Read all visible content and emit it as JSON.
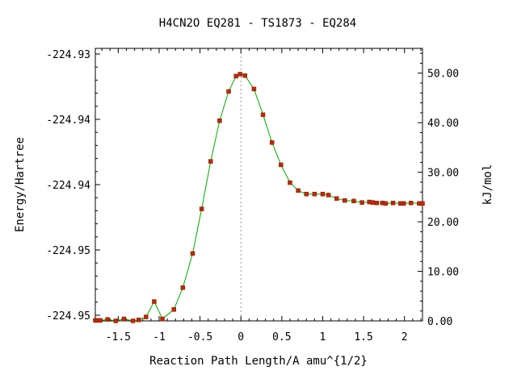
{
  "chart_data": {
    "type": "line",
    "title": "H4CN2O   EQ281 - TS1873 - EQ284",
    "xlabel": "Reaction Path Length/A amu^{1/2}",
    "ylabel_left": "Energy/Hartree",
    "ylabel_right": "kJ/mol",
    "xlim": [
      -1.78,
      2.22
    ],
    "y_left_ticks": [
      "-224.93",
      "-224.94",
      "-224.94",
      "-224.95",
      "-224.95"
    ],
    "y_right_lim": [
      0,
      55
    ],
    "y_right_ticks": [
      "0.00",
      "10.00",
      "20.00",
      "30.00",
      "40.00",
      "50.00"
    ],
    "x_ticks": [
      "-1.5",
      "-1",
      "-0.5",
      "0",
      "0.5",
      "1",
      "1.5",
      "2"
    ],
    "x_tick_values": [
      -1.5,
      -1,
      -0.5,
      0,
      0.5,
      1,
      1.5,
      2
    ],
    "ts_marker_x": 0,
    "line_color": "#00aa00",
    "marker_color": "#cc2200",
    "series": [
      {
        "points": [
          [
            -1.78,
            0.1
          ],
          [
            -1.75,
            0.1
          ],
          [
            -1.72,
            0.1
          ],
          [
            -1.63,
            0.3
          ],
          [
            -1.53,
            0.0
          ],
          [
            -1.43,
            0.4
          ],
          [
            -1.32,
            0.0
          ],
          [
            -1.25,
            0.2
          ],
          [
            -1.16,
            0.8
          ],
          [
            -1.06,
            3.9
          ],
          [
            -0.96,
            0.4
          ],
          [
            -0.82,
            2.3
          ],
          [
            -0.71,
            6.7
          ],
          [
            -0.59,
            13.6
          ],
          [
            -0.48,
            22.6
          ],
          [
            -0.37,
            32.2
          ],
          [
            -0.26,
            40.4
          ],
          [
            -0.15,
            46.3
          ],
          [
            -0.06,
            49.4
          ],
          [
            -0.01,
            49.8
          ],
          [
            0.05,
            49.5
          ],
          [
            0.16,
            46.8
          ],
          [
            0.27,
            41.6
          ],
          [
            0.38,
            36.0
          ],
          [
            0.49,
            31.5
          ],
          [
            0.6,
            27.9
          ],
          [
            0.7,
            26.3
          ],
          [
            0.8,
            25.6
          ],
          [
            0.9,
            25.6
          ],
          [
            1.0,
            25.6
          ],
          [
            1.07,
            25.4
          ],
          [
            1.17,
            24.7
          ],
          [
            1.27,
            24.3
          ],
          [
            1.38,
            24.2
          ],
          [
            1.48,
            23.9
          ],
          [
            1.57,
            24.0
          ],
          [
            1.61,
            23.9
          ],
          [
            1.66,
            23.8
          ],
          [
            1.73,
            23.8
          ],
          [
            1.77,
            23.7
          ],
          [
            1.86,
            23.8
          ],
          [
            1.95,
            23.7
          ],
          [
            1.99,
            23.7
          ],
          [
            2.08,
            23.8
          ],
          [
            2.18,
            23.7
          ],
          [
            2.22,
            23.7
          ]
        ]
      }
    ]
  }
}
